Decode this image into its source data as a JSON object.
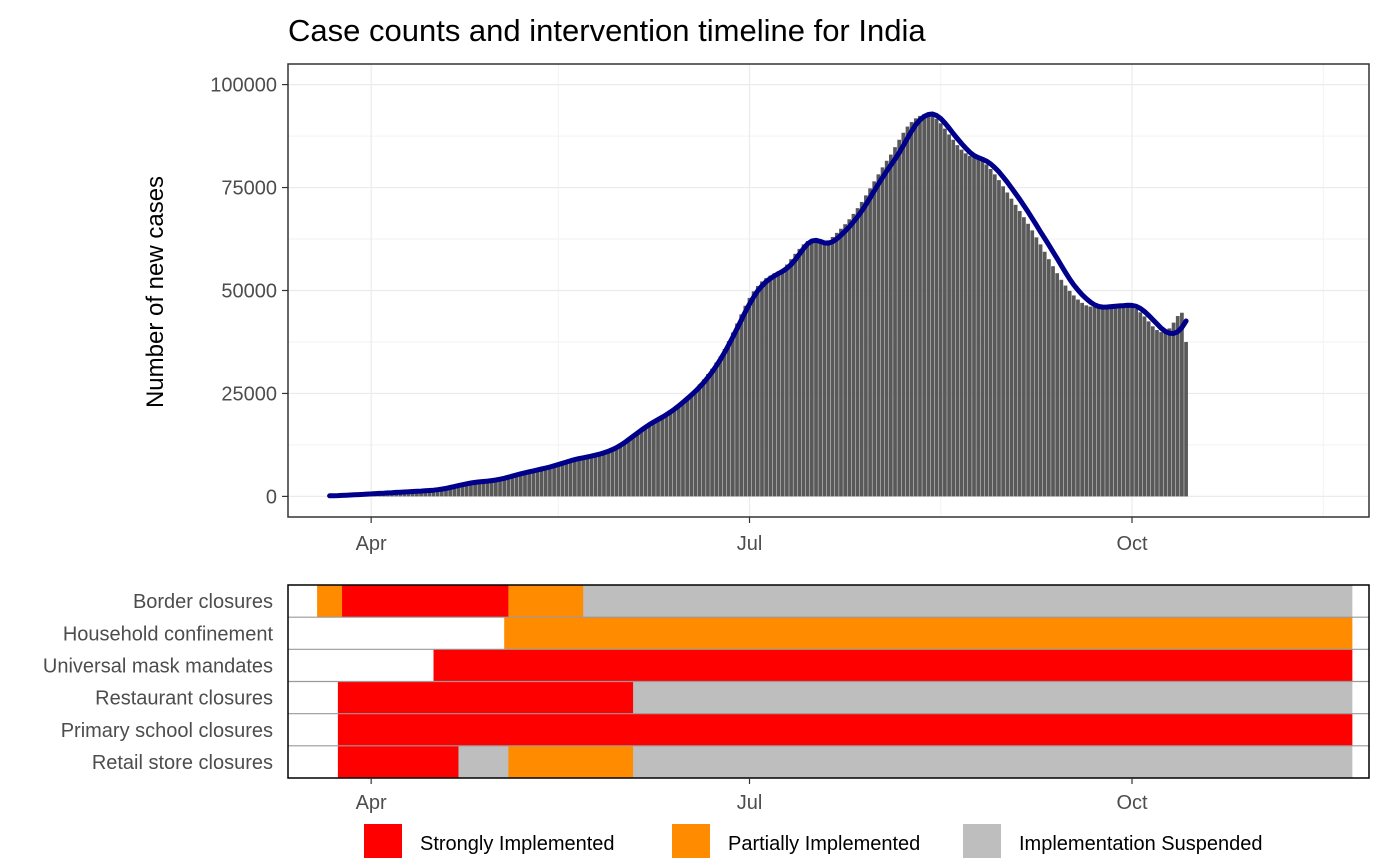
{
  "chart_data": [
    {
      "type": "bar",
      "title": "Case counts and intervention timeline for India",
      "xlabel": "",
      "ylabel": "Number of new cases",
      "x_tick_labels": [
        "Apr",
        "Jul",
        "Oct"
      ],
      "y_tick_labels": [
        "0",
        "25000",
        "50000",
        "75000",
        "100000"
      ],
      "ylim": [
        -5000,
        105000
      ],
      "xlim": [
        "2020-03-12",
        "2020-11-27"
      ],
      "grid": true,
      "x_start": "2020-03-22",
      "bar_color": "#595959",
      "line_color": "#00008b",
      "daily_new_cases": [
        360,
        410,
        470,
        530,
        590,
        650,
        700,
        760,
        810,
        870,
        920,
        980,
        1040,
        1100,
        1150,
        1200,
        1250,
        1300,
        1350,
        1400,
        1450,
        1500,
        1550,
        1600,
        1650,
        1700,
        1750,
        1790,
        1830,
        1870,
        1950,
        2150,
        2450,
        2800,
        3100,
        3300,
        3400,
        3500,
        3600,
        3700,
        3800,
        4000,
        4300,
        4600,
        4900,
        5200,
        5500,
        5800,
        6000,
        6200,
        6400,
        6600,
        6800,
        7000,
        7300,
        7600,
        8000,
        8300,
        8600,
        8900,
        9100,
        9300,
        9500,
        9700,
        9900,
        10100,
        10400,
        10800,
        11200,
        11700,
        12300,
        13000,
        13800,
        14600,
        15400,
        16200,
        17000,
        17700,
        18300,
        18900,
        19500,
        20100,
        20800,
        21600,
        22400,
        23200,
        24000,
        25000,
        26000,
        27200,
        28400,
        29700,
        31000,
        32500,
        34000,
        35800,
        37700,
        39800,
        42000,
        44200,
        46300,
        48200,
        49800,
        51100,
        52200,
        53000,
        53600,
        54200,
        54700,
        55200,
        56300,
        57600,
        58900,
        60100,
        61200,
        62000,
        62400,
        62400,
        62000,
        61800,
        62200,
        63000,
        64000,
        65000,
        66100,
        67300,
        68600,
        70000,
        71500,
        73100,
        74800,
        76500,
        78200,
        79900,
        81500,
        83000,
        84800,
        86600,
        88300,
        89800,
        90900,
        91800,
        92400,
        92800,
        92900,
        92500,
        91700,
        90600,
        89300,
        87900,
        86600,
        85300,
        84200,
        83300,
        82700,
        82300,
        82000,
        81400,
        80600,
        79500,
        78200,
        76800,
        75300,
        73800,
        72300,
        70800,
        69300,
        67800,
        66200,
        64600,
        62900,
        61200,
        59400,
        57600,
        55900,
        54200,
        52600,
        51200,
        49900,
        48800,
        47800,
        47000,
        46400,
        46100,
        46000,
        46000,
        46100,
        46200,
        46300,
        46400,
        46500,
        46500,
        46300,
        46000,
        45500,
        44700,
        43700,
        42500,
        41300,
        40400,
        39900,
        40000,
        40800,
        42200,
        43800,
        44600,
        37500
      ],
      "smoothed": [
        150,
        170,
        200,
        240,
        290,
        340,
        390,
        440,
        490,
        550,
        610,
        670,
        730,
        790,
        850,
        910,
        970,
        1020,
        1080,
        1130,
        1180,
        1240,
        1300,
        1360,
        1430,
        1510,
        1620,
        1770,
        1950,
        2160,
        2390,
        2620,
        2850,
        3060,
        3250,
        3400,
        3520,
        3620,
        3720,
        3840,
        3990,
        4170,
        4400,
        4660,
        4940,
        5220,
        5490,
        5740,
        5970,
        6200,
        6430,
        6660,
        6900,
        7150,
        7430,
        7740,
        8050,
        8360,
        8660,
        8930,
        9170,
        9380,
        9590,
        9800,
        10030,
        10280,
        10580,
        10940,
        11360,
        11860,
        12440,
        13100,
        13840,
        14600,
        15360,
        16100,
        16810,
        17480,
        18090,
        18660,
        19230,
        19830,
        20490,
        21220,
        22010,
        22840,
        23700,
        24600,
        25540,
        26560,
        27670,
        28890,
        30220,
        31670,
        33250,
        34960,
        36790,
        38730,
        40740,
        42790,
        44810,
        46700,
        48430,
        49920,
        51150,
        52140,
        52920,
        53560,
        54120,
        54690,
        55400,
        56320,
        57490,
        58850,
        60200,
        61330,
        62020,
        62180,
        61920,
        61550,
        61480,
        61840,
        62540,
        63440,
        64430,
        65500,
        66660,
        67930,
        69340,
        70870,
        72500,
        74180,
        75850,
        77470,
        79000,
        80450,
        81910,
        83480,
        85190,
        87000,
        88740,
        90240,
        91420,
        92240,
        92730,
        92850,
        92500,
        91730,
        90670,
        89430,
        88130,
        86880,
        85690,
        84570,
        83570,
        82780,
        82270,
        81880,
        81410,
        80740,
        79850,
        78790,
        77590,
        76300,
        74940,
        73540,
        72100,
        70620,
        69090,
        67500,
        65880,
        64260,
        62640,
        61020,
        59400,
        57740,
        56070,
        54400,
        52820,
        51370,
        50090,
        48980,
        48010,
        47180,
        46530,
        46120,
        45960,
        45990,
        46090,
        46180,
        46260,
        46340,
        46420,
        46390,
        46160,
        45650,
        44900,
        43970,
        42940,
        41880,
        40870,
        40080,
        39620,
        39550,
        39970,
        41010,
        42590
      ],
      "interventions": [
        {
          "name": "Border closures",
          "segments": [
            [
              "2020-03-12",
              "2020-03-19",
              ""
            ],
            [
              "2020-03-19",
              "2020-03-25",
              "partial"
            ],
            [
              "2020-03-25",
              "2020-05-04",
              "strong"
            ],
            [
              "2020-05-04",
              "2020-05-22",
              "partial"
            ],
            [
              "2020-05-22",
              "2020-11-23",
              "suspended"
            ],
            [
              "2020-11-23",
              "2020-11-27",
              ""
            ]
          ]
        },
        {
          "name": "Household confinement",
          "segments": [
            [
              "2020-03-12",
              "2020-05-03",
              ""
            ],
            [
              "2020-05-03",
              "2020-11-23",
              "partial"
            ],
            [
              "2020-11-23",
              "2020-11-27",
              ""
            ]
          ]
        },
        {
          "name": "Universal mask mandates",
          "segments": [
            [
              "2020-03-12",
              "2020-04-16",
              ""
            ],
            [
              "2020-04-16",
              "2020-11-23",
              "strong"
            ],
            [
              "2020-11-23",
              "2020-11-27",
              ""
            ]
          ]
        },
        {
          "name": "Restaurant closures",
          "segments": [
            [
              "2020-03-12",
              "2020-03-24",
              ""
            ],
            [
              "2020-03-24",
              "2020-06-03",
              "strong"
            ],
            [
              "2020-06-03",
              "2020-11-23",
              "suspended"
            ],
            [
              "2020-11-23",
              "2020-11-27",
              ""
            ]
          ]
        },
        {
          "name": "Primary school closures",
          "segments": [
            [
              "2020-03-12",
              "2020-03-24",
              ""
            ],
            [
              "2020-03-24",
              "2020-11-23",
              "strong"
            ],
            [
              "2020-11-23",
              "2020-11-27",
              ""
            ]
          ]
        },
        {
          "name": "Retail store closures",
          "segments": [
            [
              "2020-03-12",
              "2020-03-24",
              ""
            ],
            [
              "2020-03-24",
              "2020-04-22",
              "strong"
            ],
            [
              "2020-04-22",
              "2020-05-04",
              "suspended"
            ],
            [
              "2020-05-04",
              "2020-06-03",
              "partial"
            ],
            [
              "2020-06-03",
              "2020-11-23",
              "suspended"
            ],
            [
              "2020-11-23",
              "2020-11-27",
              ""
            ]
          ]
        }
      ],
      "legend": {
        "placement": "bottom",
        "items": [
          {
            "key": "strong",
            "label": "Strongly Implemented",
            "color": "#ff0000"
          },
          {
            "key": "partial",
            "label": "Partially Implemented",
            "color": "#ff8c00"
          },
          {
            "key": "suspended",
            "label": "Implementation Suspended",
            "color": "#bebebe"
          }
        ]
      }
    }
  ]
}
